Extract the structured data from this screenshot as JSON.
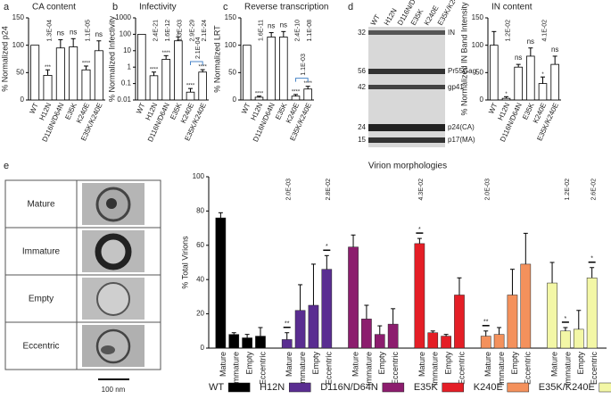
{
  "chart_data": [
    {
      "type": "bar",
      "panel": "a",
      "title": "CA content",
      "ylabel": "% Normalized p24",
      "categories": [
        "WT",
        "H12N",
        "D116N/D64N",
        "E35K",
        "K240E",
        "E35K/K240E"
      ],
      "values": [
        100,
        45,
        95,
        97,
        55,
        90
      ],
      "errors": [
        0,
        10,
        15,
        15,
        7,
        18
      ],
      "annotations": [
        null,
        "1.3E-04",
        "ns",
        "ns",
        "1.1E-05",
        "ns"
      ],
      "stars": [
        null,
        "***",
        null,
        null,
        "****",
        null
      ],
      "ylim": [
        0,
        150
      ],
      "yticks": [
        0,
        50,
        100,
        150
      ],
      "color": "#ffffff"
    },
    {
      "type": "bar",
      "panel": "b",
      "title": "Infectivity",
      "ylabel": "% Normalized Infectivity",
      "log": true,
      "categories": [
        "WT",
        "H12N",
        "D116N/D64N",
        "E35K",
        "K240E",
        "E35K/K240E"
      ],
      "values": [
        100,
        0.3,
        3,
        40,
        0.03,
        0.5
      ],
      "errors": [
        0,
        0.2,
        2,
        30,
        0.02,
        0.2
      ],
      "annotations": [
        null,
        "2.4E-21",
        "1.6E-12",
        "1.3E-03",
        "2.9E-29",
        "2.1E-24"
      ],
      "stars": [
        null,
        "****",
        "****",
        "*",
        "****",
        "****"
      ],
      "bracket": {
        "from": 4,
        "to": 5,
        "label": "2.1E-04",
        "color": "#4a86c8"
      },
      "ylim": [
        0.01,
        1000
      ],
      "yticks": [
        0.01,
        0.1,
        1,
        10,
        100,
        1000
      ],
      "color": "#ffffff"
    },
    {
      "type": "bar",
      "panel": "c",
      "title": "Reverse transcription",
      "ylabel": "% Normalized LRT",
      "categories": [
        "WT",
        "H12N",
        "D116N/D64N",
        "E35K",
        "K240E",
        "E35K/K240E"
      ],
      "values": [
        100,
        5,
        115,
        115,
        7,
        20
      ],
      "errors": [
        0,
        2,
        8,
        10,
        3,
        5
      ],
      "annotations": [
        null,
        "1.6E-11",
        "ns",
        "ns",
        "2.4E-10",
        "1.1E-08"
      ],
      "stars": [
        null,
        "****",
        null,
        null,
        "****",
        "****"
      ],
      "bracket": {
        "from": 4,
        "to": 5,
        "label": "1.1E-03",
        "color": "#4a86c8"
      },
      "ylim": [
        0,
        150
      ],
      "yticks": [
        0,
        50,
        100,
        150
      ],
      "color": "#ffffff"
    },
    {
      "type": "bar",
      "panel": "d",
      "title": "IN content",
      "ylabel": "% Normalized IN Band Intensity",
      "categories": [
        "WT",
        "H12N",
        "D116N/D64N",
        "E35K",
        "K240E",
        "E35K/K240E"
      ],
      "values": [
        100,
        3,
        60,
        80,
        30,
        65
      ],
      "errors": [
        25,
        3,
        5,
        15,
        12,
        15
      ],
      "annotations": [
        null,
        "1.2E-02",
        "ns",
        "ns",
        "4.1E-02",
        "ns"
      ],
      "stars": [
        null,
        "*",
        null,
        null,
        "*",
        null
      ],
      "blot": {
        "markers": [
          32,
          56,
          42,
          24,
          15
        ],
        "bands": [
          "IN",
          "Pr55Gag",
          "gp41",
          "p24(CA)",
          "p17(MA)"
        ]
      },
      "ylim": [
        0,
        150
      ],
      "yticks": [
        0,
        50,
        100,
        150
      ],
      "color": "#ffffff"
    },
    {
      "type": "grouped_bar",
      "panel": "e",
      "title": "Virion morphologies",
      "ylabel": "% Total Virions",
      "categories": [
        "Mature",
        "Immature",
        "Empty",
        "Eccentric"
      ],
      "image_labels": [
        "Mature",
        "Immature",
        "Empty",
        "Eccentric"
      ],
      "scale_label": "100 nm",
      "series": [
        {
          "name": "WT",
          "color": "#000000",
          "values": [
            76,
            8,
            6,
            7
          ],
          "errors": [
            3,
            1,
            2,
            5
          ],
          "p_values": [
            null,
            null,
            null,
            null
          ],
          "stars": [
            null,
            null,
            null,
            null
          ]
        },
        {
          "name": "H12N",
          "color": "#5a2d91",
          "values": [
            5,
            22,
            25,
            46
          ],
          "errors": [
            4,
            15,
            24,
            8
          ],
          "p_values": [
            "2.0E-03",
            null,
            null,
            "2.8E-02"
          ],
          "stars": [
            "**",
            null,
            null,
            "*"
          ]
        },
        {
          "name": "D116N/D64N",
          "color": "#8c1d6e",
          "values": [
            59,
            17,
            8,
            14
          ],
          "errors": [
            7,
            8,
            5,
            9
          ],
          "p_values": [
            null,
            null,
            null,
            null
          ],
          "stars": [
            null,
            null,
            null,
            null
          ]
        },
        {
          "name": "E35K",
          "color": "#e41e26",
          "values": [
            61,
            9,
            7,
            31
          ],
          "errors": [
            3,
            1,
            1,
            10
          ],
          "p_values": [
            "4.3E-02",
            null,
            null,
            null
          ],
          "stars": [
            "*",
            null,
            null,
            null
          ]
        },
        {
          "name": "K240E",
          "color": "#f4915c",
          "values": [
            7,
            8,
            31,
            49
          ],
          "errors": [
            3,
            4,
            15,
            18
          ],
          "p_values": [
            "2.0E-03",
            null,
            null,
            null
          ],
          "stars": [
            "**",
            null,
            null,
            null
          ]
        },
        {
          "name": "E35K/K240E",
          "color": "#f3f7a6",
          "values": [
            38,
            10,
            11,
            41
          ],
          "errors": [
            12,
            2,
            11,
            6
          ],
          "p_values": [
            null,
            "1.2E-02",
            null,
            "2.6E-02"
          ],
          "stars": [
            null,
            "*",
            null,
            "*"
          ]
        }
      ],
      "ylim": [
        0,
        100
      ],
      "yticks": [
        0,
        20,
        40,
        60,
        80,
        100
      ]
    }
  ]
}
